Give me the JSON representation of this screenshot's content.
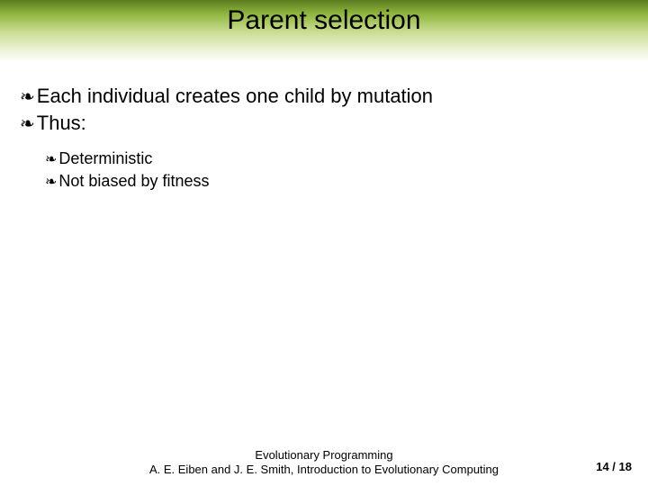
{
  "colors": {
    "title_gradient_top": "#5a7a1f",
    "title_gradient_mid": "#c8dd8f",
    "title_gradient_bottom": "#ffffff",
    "text_color": "#000000",
    "background": "#ffffff"
  },
  "typography": {
    "title_fontsize": 30,
    "bullet_l1_fontsize": 22,
    "bullet_l2_fontsize": 18,
    "footer_fontsize": 13,
    "pagenum_fontsize": 13,
    "font_family": "Arial"
  },
  "title": "Parent selection",
  "bullets": {
    "level1": [
      "Each individual creates one child by mutation",
      "Thus:"
    ],
    "level2": [
      "Deterministic",
      "Not biased by fitness"
    ]
  },
  "bullet_glyph": "༎",
  "footer": {
    "line1": "Evolutionary Programming",
    "line2": "A. E. Eiben and J. E. Smith, Introduction to Evolutionary Computing"
  },
  "page": {
    "current": 14,
    "total": 18,
    "display": "14 / 18"
  }
}
